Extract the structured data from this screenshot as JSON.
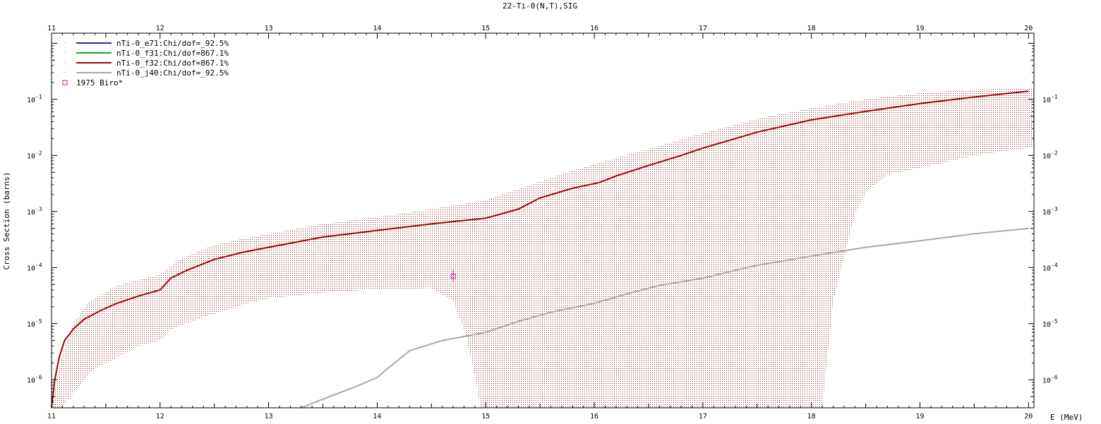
{
  "chart_data": {
    "type": "line",
    "title": "22-Ti-0(N,T),SIG",
    "xlabel": "E (MeV)",
    "ylabel": "Cross Section (barns)",
    "xlim": [
      11,
      20.05
    ],
    "ylim_log10": [
      -6.5,
      0.18
    ],
    "y_scale": "log",
    "grid": false,
    "legend_position": "top-left",
    "x_ticks": [
      "11",
      "12",
      "13",
      "14",
      "15",
      "16",
      "17",
      "18",
      "19",
      "20"
    ],
    "y_ticks": [
      {
        "base": "10",
        "exp": "-6",
        "log": -6
      },
      {
        "base": "10",
        "exp": "-5",
        "log": -5
      },
      {
        "base": "10",
        "exp": "-4",
        "log": -4
      },
      {
        "base": "10",
        "exp": "-3",
        "log": -3
      },
      {
        "base": "10",
        "exp": "-2",
        "log": -2
      },
      {
        "base": "10",
        "exp": "-1",
        "log": -1
      }
    ],
    "series": [
      {
        "name": "nTi-0_e71:Chi/dof=_92.5%",
        "color": "#1f2f9f",
        "x": [],
        "y": []
      },
      {
        "name": "nTi-0_f31:Chi/dof=867.1%",
        "color": "#22a022",
        "x": [],
        "y": []
      },
      {
        "name": "nTi-0_f32:Chi/dof=867.1%",
        "color": "#a00000",
        "x": [
          11.0,
          11.03,
          11.07,
          11.12,
          11.2,
          11.3,
          11.45,
          11.6,
          11.8,
          12.0,
          12.1,
          12.25,
          12.5,
          12.75,
          13.0,
          13.5,
          14.0,
          14.5,
          15.0,
          15.3,
          15.5,
          15.8,
          16.05,
          16.2,
          16.5,
          16.8,
          17.0,
          17.5,
          18.0,
          18.5,
          19.0,
          19.5,
          20.0
        ],
        "y": [
          3e-07,
          1e-06,
          2.5e-06,
          5e-06,
          8e-06,
          1.2e-05,
          1.7e-05,
          2.3e-05,
          3.1e-05,
          4e-05,
          6.5e-05,
          9e-05,
          0.00014,
          0.000185,
          0.00023,
          0.00035,
          0.00046,
          0.0006,
          0.00076,
          0.0011,
          0.00175,
          0.0026,
          0.0033,
          0.0043,
          0.0066,
          0.01,
          0.0135,
          0.026,
          0.043,
          0.061,
          0.084,
          0.11,
          0.14
        ]
      },
      {
        "name": "nTi-0_j40:Chi/dof=_92.5%",
        "color": "#a8a8a8",
        "x": [
          13.3,
          13.5,
          13.8,
          14.0,
          14.1,
          14.3,
          14.6,
          15.0,
          15.3,
          15.6,
          16.0,
          16.3,
          16.6,
          17.0,
          17.5,
          18.0,
          18.5,
          19.0,
          19.5,
          20.0
        ],
        "y": [
          3e-07,
          4.5e-07,
          7.5e-07,
          1.1e-06,
          1.6e-06,
          3.3e-06,
          5e-06,
          7e-06,
          1.1e-05,
          1.6e-05,
          2.3e-05,
          3.4e-05,
          4.8e-05,
          6.5e-05,
          0.00011,
          0.00016,
          0.00023,
          0.0003,
          0.0004,
          0.0005
        ]
      }
    ],
    "uncertainty_band": {
      "color": "#8c2a2a",
      "upper": {
        "x": [
          11.0,
          11.1,
          11.2,
          11.35,
          11.6,
          11.8,
          12.0,
          12.2,
          12.5,
          12.8,
          13.0,
          13.5,
          14.0,
          14.5,
          15.0,
          15.3,
          15.6,
          16.0,
          16.5,
          17.0,
          17.5,
          18.0,
          18.5,
          19.0,
          19.5,
          20.05
        ],
        "y": [
          3e-07,
          3e-06,
          1e-05,
          2.5e-05,
          4.7e-05,
          6e-05,
          7.5e-05,
          0.00015,
          0.00025,
          0.00034,
          0.0004,
          0.0006,
          0.0008,
          0.0011,
          0.0016,
          0.0025,
          0.004,
          0.007,
          0.013,
          0.025,
          0.045,
          0.07,
          0.1,
          0.13,
          0.15,
          0.16
        ]
      },
      "lower": {
        "x": [
          11.0,
          11.1,
          11.2,
          11.4,
          11.6,
          11.8,
          12.0,
          12.1,
          12.4,
          12.8,
          13.0,
          13.5,
          14.0,
          14.5,
          14.7,
          14.8,
          14.9,
          14.95,
          15.0,
          18.1,
          18.15,
          18.2,
          18.3,
          18.4,
          18.5,
          18.7,
          19.0,
          19.5,
          20.05
        ],
        "y": [
          3e-07,
          3e-07,
          6e-07,
          1.6e-06,
          2.5e-06,
          4e-06,
          5e-06,
          8e-06,
          1.3e-05,
          2.3e-05,
          2.8e-05,
          3.6e-05,
          4.1e-05,
          4.3e-05,
          2.5e-05,
          8e-06,
          1.2e-06,
          3e-07,
          3e-07,
          3e-07,
          3e-06,
          2.5e-05,
          0.00015,
          0.0009,
          0.0022,
          0.0045,
          0.006,
          0.01,
          0.014
        ]
      }
    },
    "experimental": [
      {
        "label": "1975 Biro*",
        "color": "#b0209f",
        "x": 14.7,
        "y": 7e-05,
        "yerr_low": 5.7e-05,
        "yerr_high": 9.2e-05
      }
    ]
  }
}
